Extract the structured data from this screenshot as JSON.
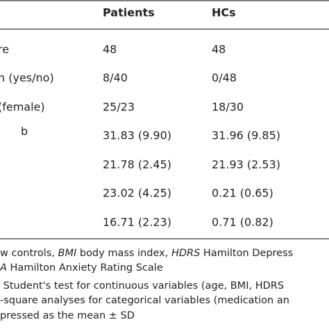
{
  "table": {
    "columns": [
      "Patients",
      "HCs"
    ],
    "rows": [
      {
        "label": "re",
        "cells": [
          "48",
          "48"
        ]
      },
      {
        "label": "n (yes/no)",
        "cells": [
          "8/40",
          "0/48"
        ]
      },
      {
        "label": "(female)",
        "cells": [
          "25/23",
          "18/30"
        ]
      },
      {
        "label": "b",
        "superscript": true,
        "cells": [
          "31.83 (9.90)",
          "31.96 (9.85)"
        ]
      },
      {
        "label": null,
        "cells": [
          "21.78 (2.45)",
          "21.93 (2.53)"
        ]
      },
      {
        "label": null,
        "cells": [
          "23.02 (4.25)",
          "0.21 (0.65)"
        ]
      },
      {
        "label": null,
        "cells": [
          "16.71 (2.23)",
          "0.71 (0.82)"
        ]
      }
    ]
  },
  "footnotes": [
    [
      {
        "text": "w controls, "
      },
      {
        "text": "BMI",
        "italic": true
      },
      {
        "text": " body mass index, "
      },
      {
        "text": "HDRS",
        "italic": true
      },
      {
        "text": " Hamilton Depress"
      }
    ],
    [
      {
        "text": "A",
        "italic": true
      },
      {
        "text": " Hamilton Anxiety Rating Scale"
      }
    ],
    [
      {
        "text": " Student's test for continuous variables (age, BMI, HDRS"
      }
    ],
    [
      {
        "text": "-square analyses for categorical variables (medication an"
      }
    ],
    [
      {
        "text": "pressed as the mean ± SD"
      }
    ]
  ]
}
